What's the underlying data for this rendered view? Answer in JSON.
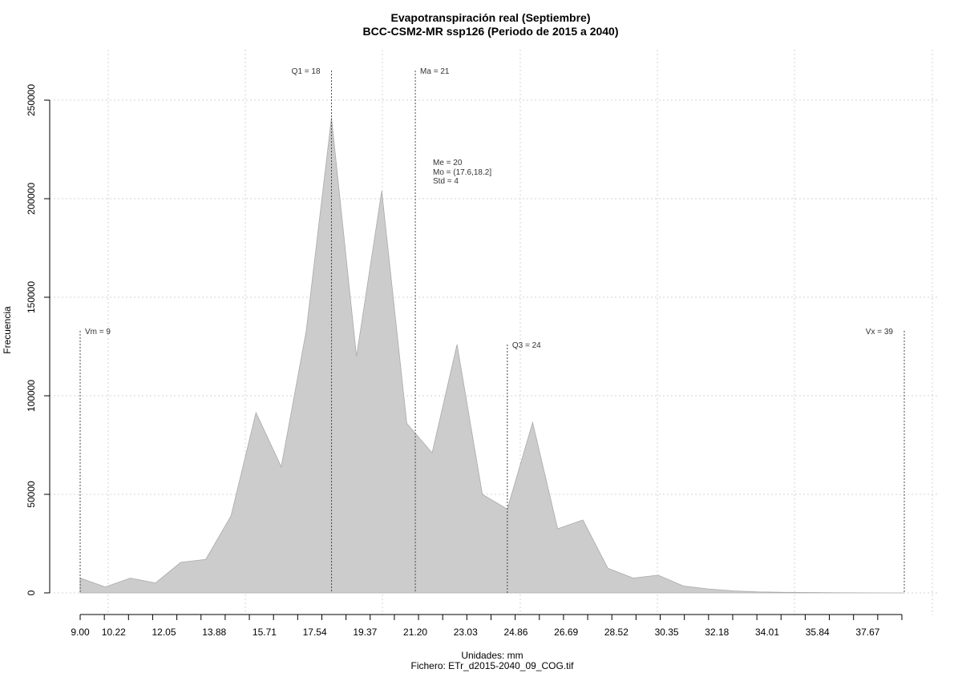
{
  "chart_data": {
    "type": "area",
    "title": "Evapotranspiración real (Septiembre)",
    "subtitle": "BCC-CSM2-MR ssp126 (Periodo de 2015 a 2040)",
    "xlabel": "Unidades: mm",
    "ylabel": "Frecuencia",
    "footer": "Fichero: ETr_d2015-2040_09_COG.tif",
    "xlim": [
      9.0,
      39.0
    ],
    "ylim": [
      0,
      250000
    ],
    "x_tick_labels": [
      "9.00",
      "10.22",
      "12.05",
      "13.88",
      "15.71",
      "17.54",
      "19.37",
      "21.20",
      "23.03",
      "24.86",
      "26.69",
      "28.52",
      "30.35",
      "32.18",
      "34.01",
      "35.84",
      "37.67"
    ],
    "x_tick_values": [
      9.0,
      10.22,
      12.05,
      13.88,
      15.71,
      17.54,
      19.37,
      21.2,
      23.03,
      24.86,
      26.69,
      28.52,
      30.35,
      32.18,
      34.01,
      35.84,
      37.67
    ],
    "y_tick_values": [
      0,
      50000,
      100000,
      150000,
      200000,
      250000
    ],
    "y_tick_labels": [
      "0",
      "50000",
      "100000",
      "150000",
      "200000",
      "250000"
    ],
    "grid": true,
    "series": [
      {
        "x": [
          9.0,
          9.91,
          10.83,
          11.74,
          12.66,
          13.57,
          14.49,
          15.4,
          16.32,
          17.23,
          18.15,
          19.06,
          19.98,
          20.89,
          21.81,
          22.72,
          23.64,
          24.55,
          25.47,
          26.38,
          27.3,
          28.21,
          29.13,
          30.04,
          30.96,
          31.87,
          32.79,
          33.7,
          34.62,
          35.53,
          36.45,
          37.36,
          38.28,
          39.0
        ],
        "y": [
          7500,
          3000,
          7500,
          5000,
          15500,
          17000,
          39000,
          91500,
          64000,
          133000,
          241000,
          120000,
          204000,
          86000,
          71000,
          126000,
          50000,
          42500,
          86500,
          32500,
          37000,
          12500,
          7500,
          9000,
          3500,
          2000,
          1000,
          500,
          300,
          200,
          100,
          50,
          0,
          0
        ]
      }
    ],
    "annotations": [
      {
        "name": "vm",
        "label": "Vm = 9",
        "x": 9.0,
        "ytop": 133000,
        "anchor": "right"
      },
      {
        "name": "q1",
        "label": "Q1 = 18",
        "x": 18.15,
        "ytop": 265000,
        "anchor": "left"
      },
      {
        "name": "ma",
        "label": "Ma = 21",
        "x": 21.2,
        "ytop": 265000,
        "anchor": "right"
      },
      {
        "name": "q3",
        "label": "Q3 = 24",
        "x": 24.55,
        "ytop": 126000,
        "anchor": "right"
      },
      {
        "name": "vx",
        "label": "Vx = 39",
        "x": 39.0,
        "ytop": 133000,
        "anchor": "left"
      }
    ],
    "stats": {
      "me": "Me = 20",
      "mo": "Mo = (17.6,18.2]",
      "std": "Std = 4"
    }
  }
}
